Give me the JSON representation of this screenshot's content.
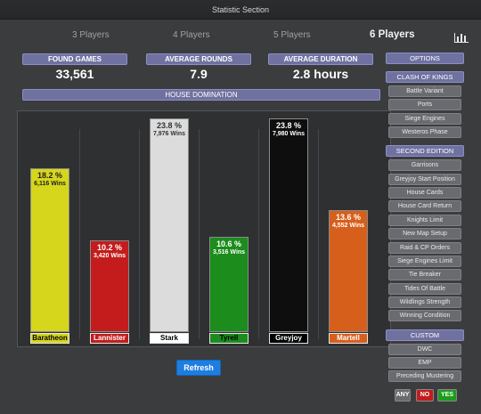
{
  "window": {
    "title": "Statistic Section"
  },
  "tabs": [
    {
      "label": "3 Players"
    },
    {
      "label": "4 Players"
    },
    {
      "label": "5 Players"
    },
    {
      "label": "6 Players"
    }
  ],
  "active_tab": "6 Players",
  "stats": {
    "found_games": {
      "label": "FOUND GAMES",
      "value": "33,561"
    },
    "average_rounds": {
      "label": "AVERAGE ROUNDS",
      "value": "7.9"
    },
    "average_duration": {
      "label": "AVERAGE DURATION",
      "value": "2.8 hours"
    }
  },
  "house_domination": {
    "title": "HOUSE DOMINATION"
  },
  "chart_data": {
    "type": "bar",
    "categories": [
      "Baratheon",
      "Lannister",
      "Stark",
      "Tyrell",
      "Greyjoy",
      "Martell"
    ],
    "values": [
      18.2,
      10.2,
      23.8,
      10.6,
      23.8,
      13.6
    ],
    "pct_labels": [
      "18.2 %",
      "10.2 %",
      "23.8 %",
      "10.6 %",
      "23.8 %",
      "13.6 %"
    ],
    "wins_labels": [
      "6,116 Wins",
      "3,420 Wins",
      "7,976 Wins",
      "3,516 Wins",
      "7,980 Wins",
      "4,552 Wins"
    ],
    "ylim": [
      0,
      23.8
    ],
    "colors": [
      "#d6d61c",
      "#c41c1c",
      "#dcdcdc",
      "#1c8c1c",
      "#0e0e0e",
      "#d65f1c"
    ],
    "text_colors": [
      "#222222",
      "#ffffff",
      "#333333",
      "#ffffff",
      "#ffffff",
      "#ffffff"
    ],
    "label_bg": [
      "#d6d61c",
      "#c41c1c",
      "#ffffff",
      "#1c8c1c",
      "#000000",
      "#d65f1c"
    ],
    "label_fg": [
      "#000000",
      "#ffffff",
      "#000000",
      "#000000",
      "#ffffff",
      "#ffffff"
    ]
  },
  "refresh_label": "Refresh",
  "options": {
    "header": "OPTIONS",
    "sections": [
      {
        "title": "CLASH OF KINGS",
        "items": [
          "Battle Variant",
          "Ports",
          "Siege Engines",
          "Westeros Phase"
        ]
      },
      {
        "title": "SECOND EDITION",
        "items": [
          "Garrisons",
          "Greyjoy Start Position",
          "House Cards",
          "House Card Return",
          "Knights Limit",
          "New Map Setup",
          "Raid & CP Orders",
          "Siege Engines Limit",
          "Tie Breaker",
          "Tides Of Battle",
          "Wildlings Strength",
          "Winning Condition"
        ]
      },
      {
        "title": "CUSTOM",
        "items": [
          "DWC",
          "EMP",
          "Preceding Mustering"
        ]
      }
    ]
  },
  "toggles": [
    {
      "label": "ANY",
      "color": "#6a6b70"
    },
    {
      "label": "NO",
      "color": "#c41c1c"
    },
    {
      "label": "YES",
      "color": "#1c9c1c"
    }
  ]
}
